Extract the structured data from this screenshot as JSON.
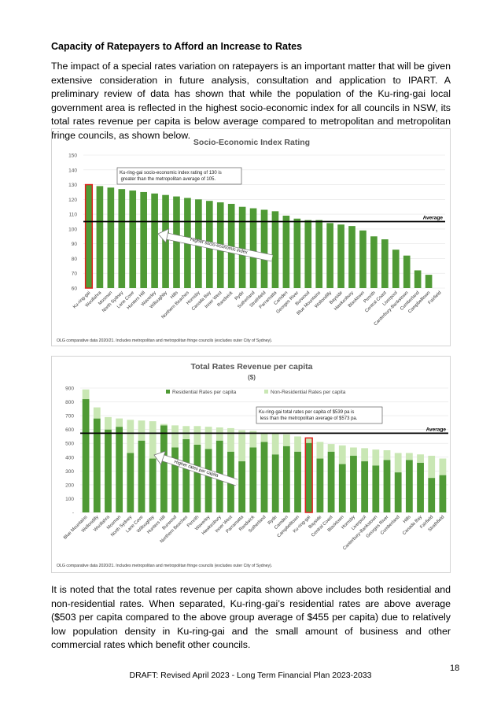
{
  "heading": "Capacity of Ratepayers to Afford an Increase to Rates",
  "intro": "The impact of a special rates variation on ratepayers is an important matter that will be given extensive consideration in future analysis, consultation and application to IPART. A preliminary review of data has shown that while the population of the Ku-ring-gai local government area is reflected in the highest socio-economic index for all councils in NSW, its total rates revenue per capita is below average compared to metropolitan and metropolitan fringe councils, as shown below.",
  "chart_data": [
    {
      "type": "bar",
      "title": "Socio-Economic Index Rating",
      "categories": [
        "Ku-ring-gai",
        "Woollahra",
        "Mosman",
        "North Sydney",
        "Lane Cove",
        "Hunters Hill",
        "Waverley",
        "Willoughby",
        "Hills",
        "Northern Beaches",
        "Hornsby",
        "Canada Bay",
        "Inner West",
        "Randwick",
        "Ryde",
        "Sutherland",
        "Strathfield",
        "Parramatta",
        "Camden",
        "Georges River",
        "Burwood",
        "Blue Mountains",
        "Wollondilly",
        "Bayside",
        "Hawkesbury",
        "Blacktown",
        "Penrith",
        "Central Coast",
        "Liverpool",
        "Canterbury-Bankstown",
        "Cumberland",
        "Campbelltown",
        "Fairfield"
      ],
      "values": [
        130,
        129,
        128,
        127,
        126,
        125,
        124,
        123,
        122,
        121,
        120,
        119,
        118,
        117,
        115,
        114,
        113,
        112,
        109,
        107,
        106,
        106,
        104,
        103,
        102,
        99,
        95,
        93,
        86,
        82,
        72,
        69,
        60
      ],
      "color": "#4f9a35",
      "highlight": "Ku-ring-gai",
      "highlight_color": "#e0201e",
      "ylim": [
        60,
        150
      ],
      "yticks": [
        60,
        70,
        80,
        90,
        100,
        110,
        120,
        130,
        140,
        150
      ],
      "grid": true,
      "average": 105,
      "average_label": "Average",
      "annotation": "Ku-ring-gai socio-economic index rating of 130 is greater than the metropolitan average of 105.",
      "arrow_label": "Higher socio-economic index",
      "footnote": "OLG comparative data 2020/21. Includes metropolitan and metropolitan fringe councils (excludes outer City of Sydney)."
    },
    {
      "type": "stacked_bar",
      "title": "Total Rates Revenue per capita",
      "subtitle": "($)",
      "categories": [
        "Blue Mountains",
        "Wollondilly",
        "Woollahra",
        "Mosman",
        "North Sydney",
        "Lane Cove",
        "Willoughby",
        "Hunters Hill",
        "Burwood",
        "Northern Beaches",
        "Penrith",
        "Waverley",
        "Hawkesbury",
        "Inner West",
        "Parramatta",
        "Randwick",
        "Sutherland",
        "Ryde",
        "Camden",
        "Campbelltown",
        "Ku-ring-gai",
        "Bayside",
        "Central Coast",
        "Blacktown",
        "Hornsby",
        "Liverpool",
        "Canterbury-Bankstown",
        "Georges River",
        "Cumberland",
        "Hills",
        "Canada Bay",
        "Fairfield",
        "Strathfield"
      ],
      "series": [
        {
          "name": "Residential Rates per capita",
          "color": "#4f9a35",
          "values": [
            820,
            680,
            600,
            620,
            430,
            520,
            390,
            630,
            470,
            530,
            490,
            460,
            520,
            440,
            370,
            470,
            510,
            420,
            480,
            440,
            503,
            390,
            440,
            350,
            410,
            370,
            340,
            380,
            290,
            380,
            360,
            250,
            270
          ]
        },
        {
          "name": "Non-Residential Rates per capita",
          "color": "#c9e7b4",
          "values": [
            70,
            80,
            90,
            60,
            240,
            145,
            270,
            10,
            160,
            95,
            135,
            160,
            95,
            170,
            225,
            120,
            65,
            150,
            85,
            110,
            36,
            120,
            55,
            135,
            60,
            95,
            115,
            70,
            140,
            50,
            60,
            160,
            120
          ]
        }
      ],
      "highlight": "Ku-ring-gai",
      "highlight_color": "#e0201e",
      "ylim": [
        0,
        900
      ],
      "yticks": [
        {
          "value": 0,
          "label": "-"
        },
        100,
        200,
        300,
        400,
        500,
        600,
        700,
        800,
        900
      ],
      "grid": true,
      "average": 573,
      "average_label": "Average",
      "annotation": "Ku-ring-gai total rates per capita of $539 pa is less than the metropolitan average of $573 pa.",
      "arrow_label": "Higher rates per capita",
      "footnote": "OLG comparative data 2020/21. Includes metropolitan and metropolitan fringe councils (excludes outer City of Sydney)."
    }
  ],
  "closing": "It is noted that the total rates revenue per capita shown above includes both residential and non-residential rates. When separated, Ku-ring-gai’s residential rates are above average ($503 per capita compared to the above group average of $455 per capita) due to relatively low population density in Ku-ring-gai and the small amount of business and other commercial rates which benefit other councils.",
  "page_number": "18",
  "footer": "DRAFT: Revised April 2023 - Long Term Financial Plan 2023-2033"
}
